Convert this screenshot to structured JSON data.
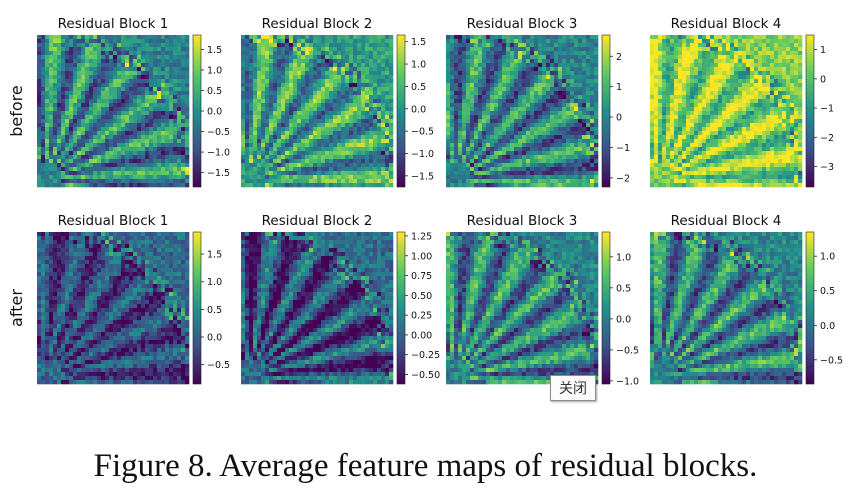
{
  "rows": [
    {
      "label": "before",
      "panels": [
        {
          "title": "Residual Block 1",
          "colorbar": {
            "ticks": [
              "1.5",
              "1.0",
              "0.5",
              "0.0",
              "−0.5",
              "−1.0",
              "−1.5"
            ],
            "values": [
              1.5,
              1.0,
              0.5,
              0.0,
              -0.5,
              -1.0,
              -1.5
            ],
            "range": [
              -1.85,
              1.85
            ]
          },
          "mean_level": 0.45
        },
        {
          "title": "Residual Block 2",
          "colorbar": {
            "ticks": [
              "1.5",
              "1.0",
              "0.5",
              "0.0",
              "−0.5",
              "−1.0",
              "−1.5"
            ],
            "values": [
              1.5,
              1.0,
              0.5,
              0.0,
              -0.5,
              -1.0,
              -1.5
            ],
            "range": [
              -1.75,
              1.65
            ]
          },
          "mean_level": 0.55
        },
        {
          "title": "Residual Block 3",
          "colorbar": {
            "ticks": [
              "2",
              "1",
              "0",
              "−1",
              "−2"
            ],
            "values": [
              2,
              1,
              0,
              -1,
              -2
            ],
            "range": [
              -2.3,
              2.7
            ]
          },
          "mean_level": 0.45
        },
        {
          "title": "Residual Block 4",
          "colorbar": {
            "ticks": [
              "1",
              "0",
              "−1",
              "−2",
              "−3"
            ],
            "values": [
              1,
              0,
              -1,
              -2,
              -3
            ],
            "range": [
              -3.7,
              1.5
            ]
          },
          "mean_level": 0.8
        }
      ]
    },
    {
      "label": "after",
      "panels": [
        {
          "title": "Residual Block 1",
          "colorbar": {
            "ticks": [
              "1.5",
              "1.0",
              "0.5",
              "0.0",
              "−0.5"
            ],
            "values": [
              1.5,
              1.0,
              0.5,
              0.0,
              -0.5
            ],
            "range": [
              -0.85,
              1.9
            ]
          },
          "mean_level": 0.35
        },
        {
          "title": "Residual Block 2",
          "colorbar": {
            "ticks": [
              "1.25",
              "1.00",
              "0.75",
              "0.50",
              "0.25",
              "0.00",
              "−0.25",
              "−0.50"
            ],
            "values": [
              1.25,
              1.0,
              0.75,
              0.5,
              0.25,
              0.0,
              -0.25,
              -0.5
            ],
            "range": [
              -0.62,
              1.3
            ]
          },
          "mean_level": 0.35
        },
        {
          "title": "Residual Block 3",
          "colorbar": {
            "ticks": [
              "1.0",
              "0.5",
              "0.0",
              "−0.5",
              "−1.0"
            ],
            "values": [
              1.0,
              0.5,
              0.0,
              -0.5,
              -1.0
            ],
            "range": [
              -1.05,
              1.4
            ]
          },
          "mean_level": 0.45
        },
        {
          "title": "Residual Block 4",
          "colorbar": {
            "ticks": [
              "1.0",
              "0.5",
              "0.0",
              "−0.5"
            ],
            "values": [
              1.0,
              0.5,
              0.0,
              -0.5
            ],
            "range": [
              -0.85,
              1.35
            ]
          },
          "mean_level": 0.45
        }
      ]
    }
  ],
  "colormap": [
    "#440154",
    "#3b528b",
    "#21918c",
    "#5ec962",
    "#fde725"
  ],
  "caption": "Figure 8. Average feature maps of residual blocks.",
  "tooltip": {
    "label": "关闭"
  }
}
